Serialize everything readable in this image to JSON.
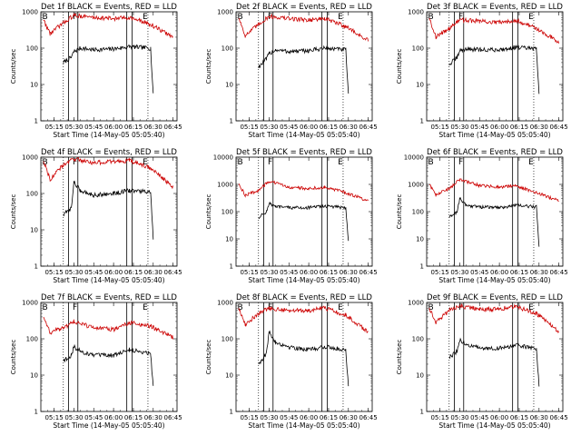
{
  "figure": {
    "y_axis_label": "Counts/sec",
    "x_axis_label": "Start Time (14-May-05 05:05:40)",
    "x_tick_labels": [
      "05:15",
      "05:30",
      "05:45",
      "06:00",
      "06:15",
      "06:30",
      "06:45"
    ],
    "y_tick_labels_small": [
      "1",
      "10",
      "100",
      "1000"
    ],
    "y_tick_labels_large": [
      "1",
      "10",
      "100",
      "1000",
      "10000"
    ],
    "colors": {
      "events": "#000000",
      "lld": "#cc0000",
      "axes": "#000000"
    }
  },
  "chart_data": [
    {
      "type": "line",
      "title": "Det 1f BLACK = Events, RED = LLD",
      "x_ticks": [
        "05:15",
        "05:30",
        "05:45",
        "06:00",
        "06:15",
        "06:30",
        "06:45"
      ],
      "ylim": [
        1,
        1000
      ],
      "yscale": "log",
      "interval_markers": [
        "B",
        "F",
        "E"
      ],
      "series": [
        {
          "name": "Events",
          "color": "#000000",
          "x": [
            "05:22",
            "05:28",
            "05:30",
            "05:35",
            "05:45",
            "06:00",
            "06:12",
            "06:28",
            "06:30"
          ],
          "values": [
            40,
            55,
            80,
            100,
            90,
            95,
            110,
            100,
            5
          ]
        },
        {
          "name": "LLD",
          "color": "#cc0000",
          "x": [
            "05:07",
            "05:12",
            "05:22",
            "05:30",
            "05:45",
            "06:00",
            "06:12",
            "06:28",
            "06:45"
          ],
          "values": [
            600,
            250,
            500,
            800,
            700,
            650,
            700,
            450,
            200
          ]
        }
      ]
    },
    {
      "type": "line",
      "title": "Det 2f BLACK = Events, RED = LLD",
      "x_ticks": [
        "05:15",
        "05:30",
        "05:45",
        "06:00",
        "06:15",
        "06:30",
        "06:45"
      ],
      "ylim": [
        1,
        1000
      ],
      "yscale": "log",
      "interval_markers": [
        "B",
        "F",
        "E"
      ],
      "series": [
        {
          "name": "Events",
          "color": "#000000",
          "x": [
            "05:22",
            "05:28",
            "05:30",
            "05:35",
            "05:45",
            "06:00",
            "06:12",
            "06:28",
            "06:30"
          ],
          "values": [
            30,
            50,
            70,
            90,
            80,
            85,
            100,
            90,
            5
          ]
        },
        {
          "name": "LLD",
          "color": "#cc0000",
          "x": [
            "05:07",
            "05:12",
            "05:22",
            "05:30",
            "05:45",
            "06:00",
            "06:12",
            "06:28",
            "06:45"
          ],
          "values": [
            700,
            220,
            450,
            750,
            650,
            600,
            650,
            400,
            160
          ]
        }
      ]
    },
    {
      "type": "line",
      "title": "Det 3f BLACK = Events, RED = LLD",
      "x_ticks": [
        "05:15",
        "05:30",
        "05:45",
        "06:00",
        "06:15",
        "06:30",
        "06:45"
      ],
      "ylim": [
        1,
        1000
      ],
      "yscale": "log",
      "interval_markers": [
        "B",
        "F",
        "E"
      ],
      "series": [
        {
          "name": "Events",
          "color": "#000000",
          "x": [
            "05:22",
            "05:28",
            "05:30",
            "05:35",
            "05:45",
            "06:00",
            "06:12",
            "06:28",
            "06:30"
          ],
          "values": [
            35,
            55,
            85,
            95,
            90,
            90,
            105,
            95,
            5
          ]
        },
        {
          "name": "LLD",
          "color": "#cc0000",
          "x": [
            "05:07",
            "05:12",
            "05:22",
            "05:30",
            "05:45",
            "06:00",
            "06:12",
            "06:28",
            "06:45"
          ],
          "values": [
            700,
            200,
            350,
            600,
            550,
            500,
            600,
            350,
            150
          ]
        }
      ]
    },
    {
      "type": "line",
      "title": "Det 4f BLACK = Events, RED = LLD",
      "x_ticks": [
        "05:15",
        "05:30",
        "05:45",
        "06:00",
        "06:15",
        "06:30",
        "06:45"
      ],
      "ylim": [
        1,
        1000
      ],
      "yscale": "log",
      "interval_markers": [
        "B",
        "F",
        "E"
      ],
      "series": [
        {
          "name": "Events",
          "color": "#000000",
          "x": [
            "05:22",
            "05:28",
            "05:30",
            "05:35",
            "05:45",
            "06:00",
            "06:12",
            "06:28",
            "06:30"
          ],
          "values": [
            25,
            40,
            200,
            120,
            90,
            100,
            120,
            110,
            5
          ]
        },
        {
          "name": "LLD",
          "color": "#cc0000",
          "x": [
            "05:07",
            "05:12",
            "05:22",
            "05:30",
            "05:45",
            "06:00",
            "06:12",
            "06:28",
            "06:45"
          ],
          "values": [
            800,
            250,
            600,
            900,
            700,
            750,
            800,
            500,
            150
          ]
        }
      ]
    },
    {
      "type": "line",
      "title": "Det 5f BLACK = Events, RED = LLD",
      "x_ticks": [
        "05:15",
        "05:30",
        "05:45",
        "06:00",
        "06:15",
        "06:30",
        "06:45"
      ],
      "ylim": [
        1,
        10000
      ],
      "yscale": "log",
      "interval_markers": [
        "B",
        "F",
        "E"
      ],
      "series": [
        {
          "name": "Events",
          "color": "#000000",
          "x": [
            "05:22",
            "05:28",
            "05:30",
            "05:35",
            "05:45",
            "06:00",
            "06:12",
            "06:28",
            "06:30"
          ],
          "values": [
            60,
            100,
            200,
            150,
            140,
            140,
            160,
            140,
            8
          ]
        },
        {
          "name": "LLD",
          "color": "#cc0000",
          "x": [
            "05:07",
            "05:12",
            "05:22",
            "05:30",
            "05:45",
            "06:00",
            "06:12",
            "06:28",
            "06:45"
          ],
          "values": [
            1000,
            400,
            600,
            1300,
            800,
            700,
            800,
            500,
            250
          ]
        }
      ]
    },
    {
      "type": "line",
      "title": "Det 6f BLACK = Events, RED = LLD",
      "x_ticks": [
        "05:15",
        "05:30",
        "05:45",
        "06:00",
        "06:15",
        "06:30",
        "06:45"
      ],
      "ylim": [
        1,
        10000
      ],
      "yscale": "log",
      "interval_markers": [
        "B",
        "F",
        "E"
      ],
      "series": [
        {
          "name": "Events",
          "color": "#000000",
          "x": [
            "05:22",
            "05:28",
            "05:30",
            "05:35",
            "05:45",
            "06:00",
            "06:12",
            "06:28",
            "06:30"
          ],
          "values": [
            60,
            100,
            300,
            170,
            150,
            140,
            170,
            150,
            5
          ]
        },
        {
          "name": "LLD",
          "color": "#cc0000",
          "x": [
            "05:07",
            "05:12",
            "05:22",
            "05:30",
            "05:45",
            "06:00",
            "06:12",
            "06:28",
            "06:45"
          ],
          "values": [
            1000,
            400,
            700,
            1500,
            900,
            800,
            900,
            500,
            250
          ]
        }
      ]
    },
    {
      "type": "line",
      "title": "Det 7f BLACK = Events, RED = LLD",
      "x_ticks": [
        "05:15",
        "05:30",
        "05:45",
        "06:00",
        "06:15",
        "06:30",
        "06:45"
      ],
      "ylim": [
        1,
        1000
      ],
      "yscale": "log",
      "interval_markers": [
        "B",
        "F",
        "E"
      ],
      "series": [
        {
          "name": "Events",
          "color": "#000000",
          "x": [
            "05:22",
            "05:28",
            "05:30",
            "05:35",
            "05:45",
            "06:00",
            "06:12",
            "06:28",
            "06:30"
          ],
          "values": [
            25,
            35,
            60,
            45,
            35,
            35,
            50,
            40,
            5
          ]
        },
        {
          "name": "LLD",
          "color": "#cc0000",
          "x": [
            "05:07",
            "05:12",
            "05:22",
            "05:30",
            "05:45",
            "06:00",
            "06:12",
            "06:28",
            "06:45"
          ],
          "values": [
            400,
            150,
            200,
            300,
            200,
            180,
            280,
            220,
            110
          ]
        }
      ]
    },
    {
      "type": "line",
      "title": "Det 8f BLACK = Events, RED = LLD",
      "x_ticks": [
        "05:15",
        "05:30",
        "05:45",
        "06:00",
        "06:15",
        "06:30",
        "06:45"
      ],
      "ylim": [
        1,
        1000
      ],
      "yscale": "log",
      "interval_markers": [
        "B",
        "F",
        "E"
      ],
      "series": [
        {
          "name": "Events",
          "color": "#000000",
          "x": [
            "05:22",
            "05:28",
            "05:30",
            "05:35",
            "05:45",
            "06:00",
            "06:12",
            "06:28",
            "06:30"
          ],
          "values": [
            20,
            40,
            150,
            80,
            60,
            50,
            60,
            50,
            5
          ]
        },
        {
          "name": "LLD",
          "color": "#cc0000",
          "x": [
            "05:07",
            "05:12",
            "05:22",
            "05:30",
            "05:45",
            "06:00",
            "06:12",
            "06:28",
            "06:45"
          ],
          "values": [
            700,
            250,
            500,
            700,
            600,
            600,
            700,
            450,
            150
          ]
        }
      ]
    },
    {
      "type": "line",
      "title": "Det 9f BLACK = Events, RED = LLD",
      "x_ticks": [
        "05:15",
        "05:30",
        "05:45",
        "06:00",
        "06:15",
        "06:30",
        "06:45"
      ],
      "ylim": [
        1,
        1000
      ],
      "yscale": "log",
      "interval_markers": [
        "B",
        "F",
        "E"
      ],
      "series": [
        {
          "name": "Events",
          "color": "#000000",
          "x": [
            "05:22",
            "05:28",
            "05:30",
            "05:35",
            "05:45",
            "06:00",
            "06:12",
            "06:28",
            "06:30"
          ],
          "values": [
            30,
            45,
            90,
            70,
            55,
            55,
            65,
            55,
            5
          ]
        },
        {
          "name": "LLD",
          "color": "#cc0000",
          "x": [
            "05:07",
            "05:12",
            "05:22",
            "05:30",
            "05:45",
            "06:00",
            "06:12",
            "06:28",
            "06:45"
          ],
          "values": [
            700,
            280,
            600,
            800,
            650,
            650,
            800,
            500,
            160
          ]
        }
      ]
    }
  ]
}
